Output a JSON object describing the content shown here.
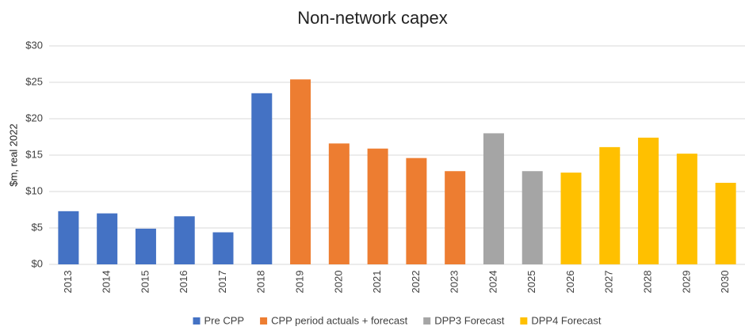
{
  "chart_data": {
    "type": "bar",
    "title": "Non-network capex",
    "y_label": "$m, real 2022",
    "categories": [
      "2013",
      "2014",
      "2015",
      "2016",
      "2017",
      "2018",
      "2019",
      "2020",
      "2021",
      "2022",
      "2023",
      "2024",
      "2025",
      "2026",
      "2027",
      "2028",
      "2029",
      "2030"
    ],
    "series": [
      {
        "name": "Pre CPP",
        "color": "#4472c4",
        "values": [
          7.3,
          7.0,
          4.9,
          6.6,
          4.4,
          23.5,
          null,
          null,
          null,
          null,
          null,
          null,
          null,
          null,
          null,
          null,
          null,
          null
        ]
      },
      {
        "name": "CPP period actuals + forecast",
        "color": "#ed7d31",
        "values": [
          null,
          null,
          null,
          null,
          null,
          null,
          25.4,
          16.6,
          15.9,
          14.6,
          12.8,
          null,
          null,
          null,
          null,
          null,
          null,
          null
        ]
      },
      {
        "name": "DPP3 Forecast",
        "color": "#a5a5a5",
        "values": [
          null,
          null,
          null,
          null,
          null,
          null,
          null,
          null,
          null,
          null,
          null,
          18.0,
          12.8,
          null,
          null,
          null,
          null,
          null
        ]
      },
      {
        "name": "DPP4 Forecast",
        "color": "#ffc000",
        "values": [
          null,
          null,
          null,
          null,
          null,
          null,
          null,
          null,
          null,
          null,
          null,
          null,
          null,
          12.6,
          16.1,
          17.4,
          15.2,
          11.2
        ]
      }
    ],
    "ylim": [
      0,
      30
    ],
    "yticks": [
      {
        "value": 0,
        "label": "$0"
      },
      {
        "value": 5,
        "label": "$5"
      },
      {
        "value": 10,
        "label": "$10"
      },
      {
        "value": 15,
        "label": "$15"
      },
      {
        "value": 20,
        "label": "$20"
      },
      {
        "value": 25,
        "label": "$25"
      },
      {
        "value": 30,
        "label": "$30"
      }
    ],
    "grid": true,
    "legend": "bottom"
  }
}
